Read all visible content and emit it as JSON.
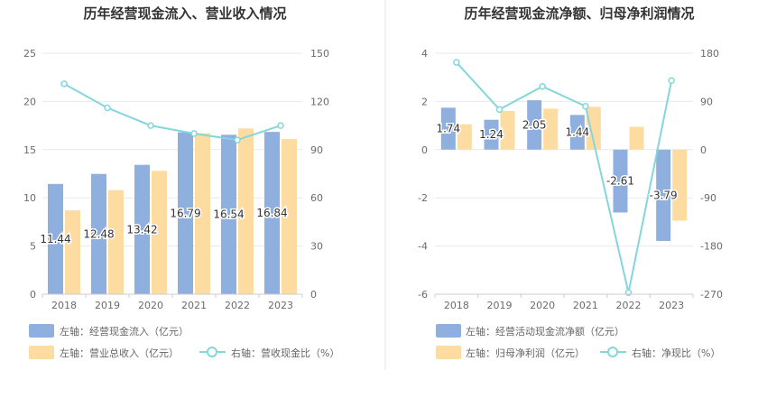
{
  "colors": {
    "bar_primary": "#8fb0de",
    "bar_secondary": "#fddca2",
    "line": "#84d6dc",
    "grid": "#e6e9f0",
    "axis_text": "#6b6b6b",
    "title": "#333333",
    "label_text": "#333333",
    "divider": "#e5e5e5"
  },
  "chart_data": [
    {
      "type": "bar",
      "title": "历年经营现金流入、营业收入情况",
      "categories": [
        "2018",
        "2019",
        "2020",
        "2021",
        "2022",
        "2023"
      ],
      "left_axis": {
        "ylim": [
          0,
          25
        ],
        "ticks": [
          "0",
          "5",
          "10",
          "15",
          "20",
          "25"
        ]
      },
      "right_axis": {
        "ylim": [
          0,
          150
        ],
        "ticks": [
          "0",
          "30",
          "60",
          "90",
          "120",
          "150"
        ]
      },
      "grid": true,
      "series": [
        {
          "name": "左轴：经营现金流入（亿元）",
          "kind": "bar",
          "axis": "left",
          "values": [
            11.44,
            12.48,
            13.42,
            16.79,
            16.54,
            16.84
          ]
        },
        {
          "name": "左轴：营业总收入（亿元）",
          "kind": "bar",
          "axis": "left",
          "values": [
            8.7,
            10.8,
            12.8,
            16.7,
            17.2,
            16.1
          ]
        },
        {
          "name": "右轴：营收现金比（%）",
          "kind": "line",
          "axis": "right",
          "values": [
            131,
            116,
            105,
            100,
            96,
            105
          ]
        }
      ],
      "data_labels": [
        "11.44",
        "12.48",
        "13.42",
        "16.79",
        "16.54",
        "16.84"
      ],
      "legend_position": "bottom"
    },
    {
      "type": "bar",
      "title": "历年经营现金流净额、归母净利润情况",
      "categories": [
        "2018",
        "2019",
        "2020",
        "2021",
        "2022",
        "2023"
      ],
      "left_axis": {
        "ylim": [
          -6,
          4
        ],
        "ticks": [
          "-6",
          "-4",
          "-2",
          "0",
          "2",
          "4"
        ]
      },
      "right_axis": {
        "ylim": [
          -270,
          180
        ],
        "ticks": [
          "-270",
          "-180",
          "-90",
          "0",
          "90",
          "180"
        ]
      },
      "grid": true,
      "series": [
        {
          "name": "左轴：经营活动现金流净额（亿元）",
          "kind": "bar",
          "axis": "left",
          "values": [
            1.74,
            1.24,
            2.05,
            1.44,
            -2.61,
            -3.79
          ]
        },
        {
          "name": "左轴：归母净利润（亿元）",
          "kind": "bar",
          "axis": "left",
          "values": [
            1.05,
            1.6,
            1.7,
            1.78,
            0.95,
            -2.95
          ]
        },
        {
          "name": "右轴：净现比（%）",
          "kind": "line",
          "axis": "right",
          "values": [
            163,
            75,
            118,
            81,
            -267,
            129
          ]
        }
      ],
      "data_labels": [
        "1.74",
        "1.24",
        "2.05",
        "1.44",
        "-2.61",
        "-3.79"
      ],
      "legend_position": "bottom"
    }
  ]
}
